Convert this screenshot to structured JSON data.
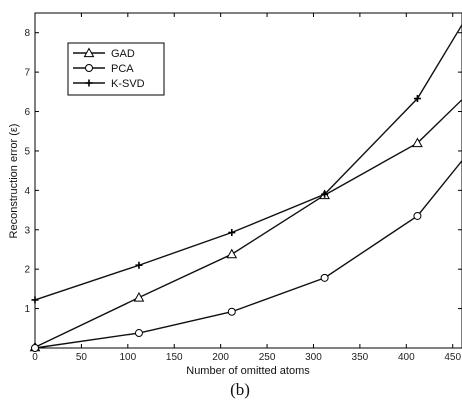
{
  "chart_data": {
    "type": "line",
    "xlabel": "Number of omitted atoms",
    "ylabel": "Reconstruction error (ε)",
    "caption": "(b)",
    "xlim": [
      0,
      460
    ],
    "ylim": [
      0,
      8.5
    ],
    "xticks": [
      0,
      50,
      100,
      150,
      200,
      250,
      300,
      350,
      400,
      450
    ],
    "yticks": [
      1,
      2,
      3,
      4,
      5,
      6,
      7,
      8
    ],
    "grid": false,
    "legend_position": "top-left",
    "series": [
      {
        "name": "GAD",
        "marker": "triangle",
        "x": [
          0,
          112,
          212,
          312,
          412,
          460
        ],
        "y": [
          0.02,
          1.28,
          2.38,
          3.88,
          5.2,
          6.3
        ]
      },
      {
        "name": "PCA",
        "marker": "circle",
        "x": [
          0,
          112,
          212,
          312,
          412,
          460
        ],
        "y": [
          0.0,
          0.38,
          0.92,
          1.78,
          3.35,
          4.75
        ]
      },
      {
        "name": "K-SVD",
        "marker": "plus",
        "x": [
          0,
          112,
          212,
          312,
          412,
          460
        ],
        "y": [
          1.22,
          2.1,
          2.93,
          3.9,
          6.33,
          8.2
        ]
      }
    ]
  }
}
